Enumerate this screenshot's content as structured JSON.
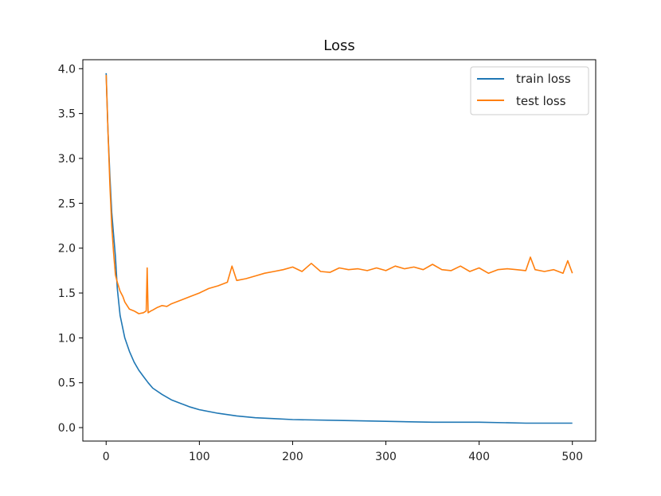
{
  "chart_data": {
    "type": "line",
    "title": "Loss",
    "xlabel": "",
    "ylabel": "",
    "xlim": [
      -25,
      525
    ],
    "ylim": [
      -0.15,
      4.1
    ],
    "xticks": [
      0,
      100,
      200,
      300,
      400,
      500
    ],
    "yticks": [
      0.0,
      0.5,
      1.0,
      1.5,
      2.0,
      2.5,
      3.0,
      3.5,
      4.0
    ],
    "xtick_labels": [
      "0",
      "100",
      "200",
      "300",
      "400",
      "500"
    ],
    "ytick_labels": [
      "0.0",
      "0.5",
      "1.0",
      "1.5",
      "2.0",
      "2.5",
      "3.0",
      "3.5",
      "4.0"
    ],
    "grid": false,
    "legend_position": "top-right",
    "series": [
      {
        "name": "train loss",
        "color": "#1f77b4",
        "x": [
          0,
          2,
          4,
          6,
          8,
          10,
          12,
          15,
          20,
          25,
          30,
          35,
          40,
          45,
          50,
          60,
          70,
          80,
          90,
          100,
          120,
          140,
          160,
          180,
          200,
          250,
          300,
          350,
          400,
          450,
          500
        ],
        "values": [
          3.95,
          3.3,
          2.8,
          2.4,
          2.15,
          1.9,
          1.55,
          1.25,
          1.0,
          0.85,
          0.73,
          0.64,
          0.57,
          0.5,
          0.44,
          0.37,
          0.31,
          0.27,
          0.23,
          0.2,
          0.16,
          0.13,
          0.11,
          0.1,
          0.09,
          0.08,
          0.07,
          0.06,
          0.06,
          0.05,
          0.05
        ]
      },
      {
        "name": "test loss",
        "color": "#ff7f0e",
        "x": [
          0,
          2,
          4,
          6,
          8,
          10,
          12,
          15,
          18,
          20,
          25,
          30,
          35,
          40,
          43,
          44,
          45,
          48,
          50,
          55,
          60,
          65,
          70,
          80,
          90,
          100,
          110,
          120,
          130,
          135,
          140,
          150,
          160,
          170,
          180,
          190,
          200,
          210,
          220,
          230,
          240,
          250,
          260,
          270,
          280,
          290,
          300,
          310,
          320,
          330,
          340,
          350,
          360,
          370,
          380,
          390,
          400,
          410,
          420,
          430,
          440,
          450,
          455,
          460,
          470,
          480,
          490,
          495,
          500
        ],
        "values": [
          3.93,
          3.3,
          2.7,
          2.25,
          1.95,
          1.7,
          1.62,
          1.52,
          1.46,
          1.4,
          1.32,
          1.3,
          1.27,
          1.28,
          1.3,
          1.78,
          1.28,
          1.3,
          1.31,
          1.34,
          1.36,
          1.35,
          1.38,
          1.42,
          1.46,
          1.5,
          1.55,
          1.58,
          1.62,
          1.8,
          1.64,
          1.66,
          1.69,
          1.72,
          1.74,
          1.76,
          1.79,
          1.74,
          1.83,
          1.74,
          1.73,
          1.78,
          1.76,
          1.77,
          1.75,
          1.78,
          1.75,
          1.8,
          1.77,
          1.79,
          1.76,
          1.82,
          1.76,
          1.75,
          1.8,
          1.74,
          1.78,
          1.72,
          1.76,
          1.77,
          1.76,
          1.75,
          1.9,
          1.76,
          1.74,
          1.76,
          1.72,
          1.86,
          1.72
        ]
      }
    ]
  }
}
